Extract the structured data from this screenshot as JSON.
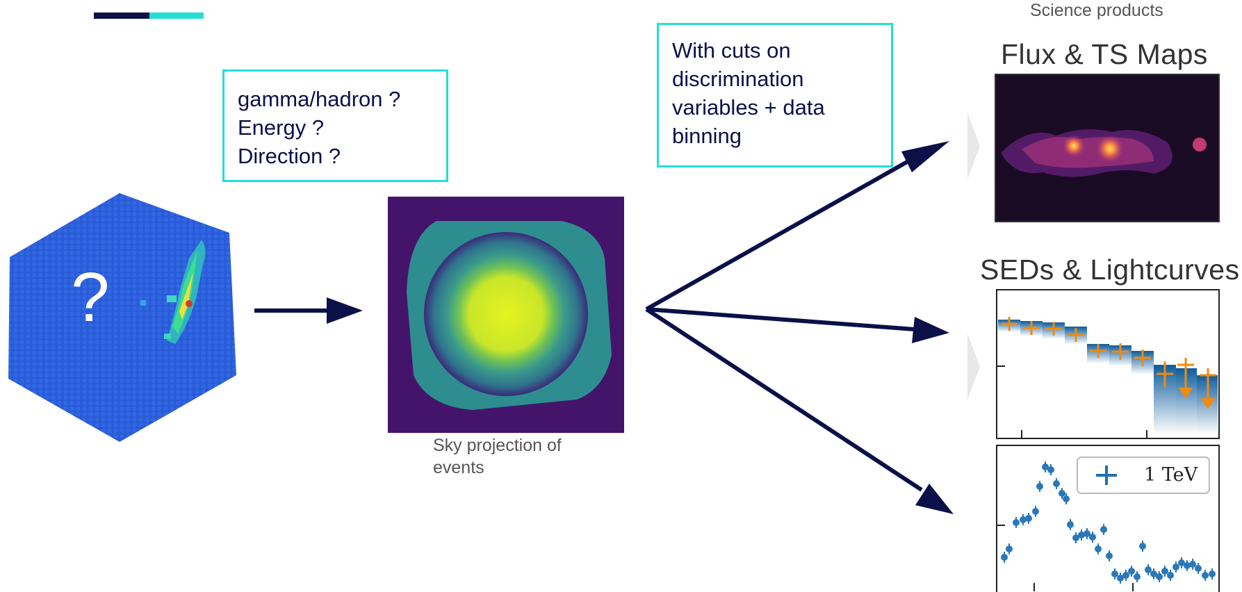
{
  "colors": {
    "navy": "#0b1048",
    "cyan": "#22dfd4",
    "orange": "#f28a0c",
    "blue": "#2a78b8"
  },
  "questions": {
    "lines": [
      "gamma/hadron ?",
      "Energy ?",
      "Direction ?"
    ]
  },
  "cuts": {
    "lines": [
      "With cuts on",
      "discrimination",
      "variables + data",
      "binning"
    ]
  },
  "camera": {
    "mark": "?"
  },
  "sky": {
    "caption_lines": [
      "Sky projection of",
      "events"
    ]
  },
  "products": {
    "label": "Science products",
    "maps_title": "Flux & TS Maps",
    "sed_title": "SEDs & Lightcurves",
    "lc_legend": "1 TeV"
  }
}
